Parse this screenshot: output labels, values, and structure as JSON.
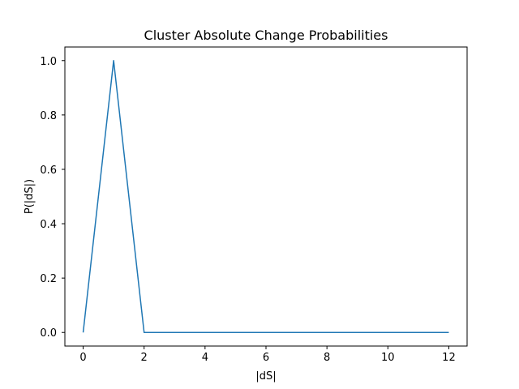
{
  "chart_data": {
    "type": "line",
    "title": "Cluster Absolute Change Probabilities",
    "xlabel": "|dS|",
    "ylabel": "P(|dS|)",
    "x": [
      0,
      1,
      2,
      3,
      4,
      5,
      6,
      7,
      8,
      9,
      10,
      11,
      12
    ],
    "series": [
      {
        "values": [
          0.0,
          1.0,
          0.0,
          0.0,
          0.0,
          0.0,
          0.0,
          0.0,
          0.0,
          0.0,
          0.0,
          0.0,
          0.0
        ],
        "color": "#1f77b4"
      }
    ],
    "xlim": [
      -0.6,
      12.6
    ],
    "ylim": [
      -0.05,
      1.05
    ],
    "xticks": [
      0,
      2,
      4,
      6,
      8,
      10,
      12
    ],
    "xtick_labels": [
      "0",
      "2",
      "4",
      "6",
      "8",
      "10",
      "12"
    ],
    "yticks": [
      0.0,
      0.2,
      0.4,
      0.6,
      0.8,
      1.0
    ],
    "ytick_labels": [
      "0.0",
      "0.2",
      "0.4",
      "0.6",
      "0.8",
      "1.0"
    ],
    "grid": false,
    "legend": "none"
  }
}
